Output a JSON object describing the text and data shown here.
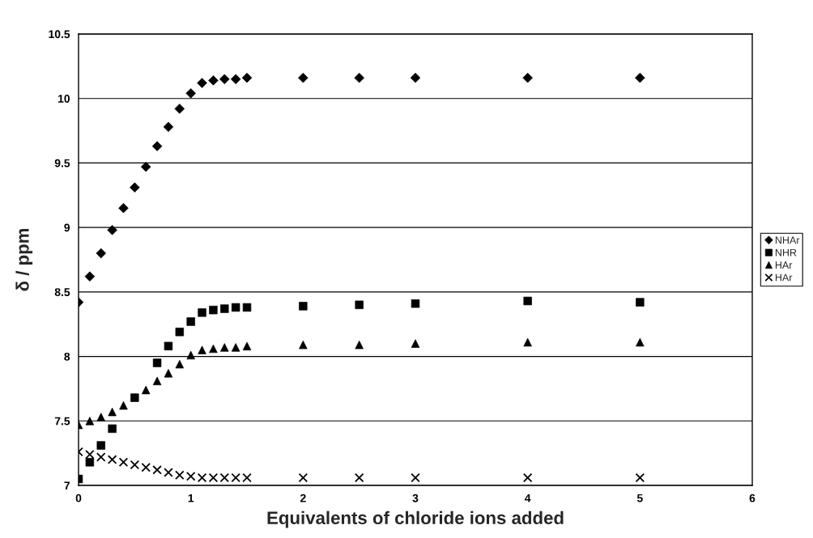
{
  "chart_data": {
    "type": "scatter",
    "xlabel": "Equivalents of chloride ions added",
    "ylabel": "δ / ppm",
    "x": [
      0,
      0.1,
      0.2,
      0.3,
      0.4,
      0.5,
      0.6,
      0.7,
      0.8,
      0.9,
      1.0,
      1.1,
      1.2,
      1.3,
      1.4,
      1.5,
      2,
      2.5,
      3,
      4,
      5
    ],
    "series": [
      {
        "name": "NHAr",
        "color": "#000000",
        "marker": "diamond",
        "values": [
          8.42,
          8.62,
          8.8,
          8.98,
          9.15,
          9.31,
          9.47,
          9.63,
          9.78,
          9.92,
          10.04,
          10.12,
          10.14,
          10.15,
          10.15,
          10.16,
          10.16,
          10.16,
          10.16,
          10.16,
          10.16
        ]
      },
      {
        "name": "NHR",
        "color": "#000000",
        "marker": "square",
        "values": [
          7.05,
          7.18,
          7.31,
          7.44,
          null,
          7.68,
          null,
          7.95,
          8.08,
          8.19,
          8.27,
          8.34,
          8.36,
          8.37,
          8.38,
          8.38,
          8.39,
          8.4,
          8.41,
          8.43,
          8.42
        ]
      },
      {
        "name": "HAr",
        "color": "#000000",
        "marker": "triangle",
        "values": [
          7.47,
          7.5,
          7.53,
          7.57,
          7.62,
          null,
          7.74,
          7.81,
          7.87,
          7.94,
          8.01,
          8.05,
          8.06,
          8.07,
          8.07,
          8.08,
          8.09,
          8.09,
          8.1,
          8.11,
          8.11
        ]
      },
      {
        "name": "HAr",
        "color": "#000000",
        "marker": "cross",
        "values": [
          7.26,
          7.24,
          7.22,
          7.2,
          7.18,
          7.16,
          7.14,
          7.12,
          7.1,
          7.08,
          7.07,
          7.06,
          7.06,
          7.06,
          7.06,
          7.06,
          7.06,
          7.06,
          7.06,
          7.06,
          7.06
        ]
      }
    ],
    "xlim": [
      0,
      6
    ],
    "xticks": [
      0,
      1,
      2,
      3,
      4,
      5,
      6
    ],
    "ylim": [
      7,
      10.5
    ],
    "yticks": [
      7,
      7.5,
      8,
      8.5,
      9,
      9.5,
      10,
      10.5
    ],
    "grid": "y",
    "legend": "right"
  }
}
